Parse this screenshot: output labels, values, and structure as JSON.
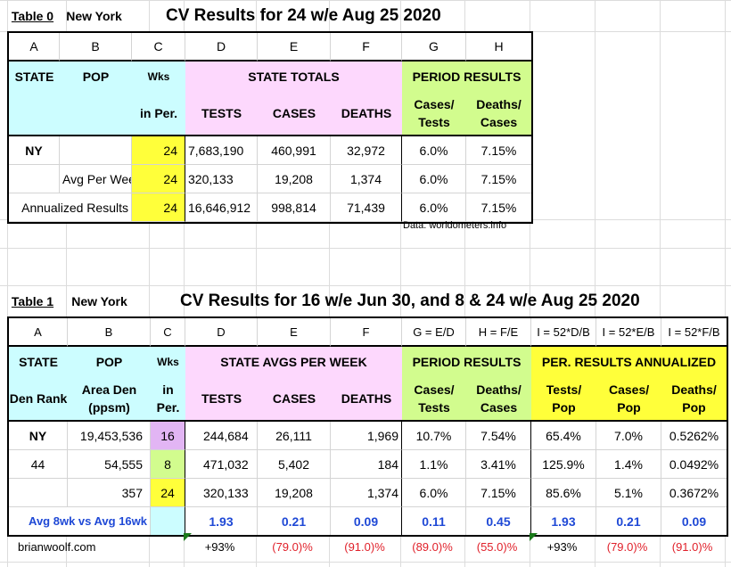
{
  "table0": {
    "label": "Table 0",
    "state_name": "New York",
    "heading": "CV Results for  24 w/e Aug 25 2020",
    "col_letters": [
      "A",
      "B",
      "C",
      "D",
      "E",
      "F",
      "G",
      "H"
    ],
    "band": {
      "state": "STATE",
      "pop": "POP",
      "wks": "Wks",
      "wks_sub": "in Per.",
      "group": "STATE TOTALS",
      "tests": "TESTS",
      "cases": "CASES",
      "deaths": "DEATHS",
      "period": "PERIOD RESULTS",
      "cases_tests": "Cases/ Tests",
      "deaths_cases": "Deaths/ Cases"
    },
    "rows": [
      [
        "NY",
        "",
        "24",
        "7,683,190",
        "460,991",
        "32,972",
        "6.0%",
        "7.15%"
      ],
      [
        "",
        "Avg Per Week",
        "24",
        "320,133",
        "19,208",
        "1,374",
        "6.0%",
        "7.15%"
      ],
      [
        "Annualized Results",
        "",
        "24",
        "16,646,912",
        "998,814",
        "71,439",
        "6.0%",
        "7.15%"
      ]
    ],
    "source": "Data: worldometers.info"
  },
  "table1": {
    "label": "Table 1",
    "state_name": "New York",
    "heading": "CV Results for 16 w/e Jun 30, and 8 & 24 w/e Aug 25 2020",
    "col_letters": [
      "A",
      "B",
      "C",
      "D",
      "E",
      "F",
      "G = E/D",
      "H = F/E",
      "I = 52*D/B",
      "I = 52*E/B",
      "I = 52*F/B"
    ],
    "band": {
      "state": "STATE",
      "pop": "POP",
      "wks": "Wks",
      "den_rank": "Den Rank",
      "area_den": "Area Den (ppsm)",
      "wks_sub": "in Per.",
      "group": "STATE AVGS PER WEEK",
      "tests": "TESTS",
      "cases": "CASES",
      "deaths": "DEATHS",
      "period": "PERIOD RESULTS",
      "cases_tests": "Cases/ Tests",
      "deaths_cases": "Deaths/ Cases",
      "annualized": "PER. RESULTS ANNUALIZED",
      "tests_pop": "Tests/ Pop",
      "cases_pop": "Cases/ Pop",
      "deaths_pop": "Deaths/ Pop"
    },
    "rows": [
      [
        "NY",
        "19,453,536",
        "16",
        "244,684",
        "26,111",
        "1,969",
        "10.7%",
        "7.54%",
        "65.4%",
        "7.0%",
        "0.5262%"
      ],
      [
        "44",
        "54,555",
        "8",
        "471,032",
        "5,402",
        "184",
        "1.1%",
        "3.41%",
        "125.9%",
        "1.4%",
        "0.0492%"
      ],
      [
        "",
        "357",
        "24",
        "320,133",
        "19,208",
        "1,374",
        "6.0%",
        "7.15%",
        "85.6%",
        "5.1%",
        "0.3672%"
      ]
    ],
    "avg_row": {
      "label": "Avg 8wk vs Avg 16wk",
      "values": [
        "1.93",
        "0.21",
        "0.09",
        "0.11",
        "0.45",
        "1.93",
        "0.21",
        "0.09"
      ]
    },
    "footer": {
      "site": "brianwoolf.com",
      "values": [
        "+93%",
        "(79.0)%",
        "(91.0)%",
        "(89.0)%",
        "(55.0)%",
        "+93%",
        "(79.0)%",
        "(91.0)%"
      ]
    }
  },
  "colors": {
    "cyan": "#ccfdff",
    "pink": "#fdd8fd",
    "green": "#d2fc8e",
    "yellow": "#ffff3a",
    "purple": "#e2b5f4",
    "blue": "#1f49d6",
    "red": "#e0202a"
  }
}
